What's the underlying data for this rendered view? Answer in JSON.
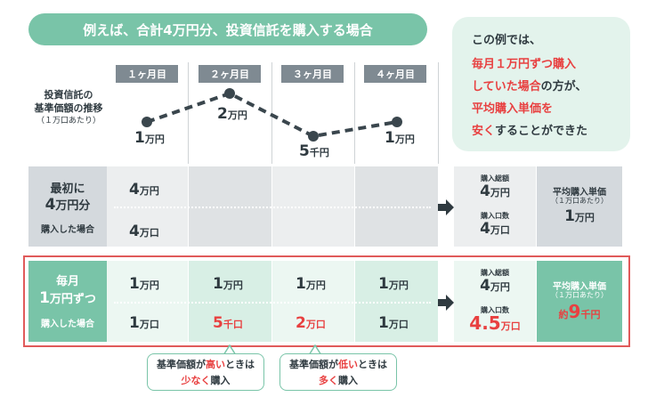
{
  "banner": {
    "title": "例えば、合計4万円分、投資信託を購入する場合"
  },
  "callout": {
    "l1": "この例では、",
    "l2": "毎月１万円ずつ購入",
    "l3a": "していた場合",
    "l3b": "の方が、",
    "l4": "平均購入単価を",
    "l5a": "安く",
    "l5b": "することができた"
  },
  "months": [
    "１ヶ月目",
    "２ヶ月目",
    "３ヶ月目",
    "４ヶ月目"
  ],
  "price_chart": {
    "label_l1": "投資信託の",
    "label_l2": "基準価額の推移",
    "label_l3": "（１万口あたり）",
    "points": [
      {
        "num": "1",
        "unit": "万円",
        "value_yen": 10000
      },
      {
        "num": "2",
        "unit": "万円",
        "value_yen": 20000
      },
      {
        "num": "5",
        "unit": "千円",
        "value_yen": 5000
      },
      {
        "num": "1",
        "unit": "万円",
        "value_yen": 10000
      }
    ]
  },
  "lump": {
    "label_l1": "最初に",
    "label_l2_num": "4",
    "label_l2_unit": "万円分",
    "label_l3": "購入した場合",
    "amount_num": "4",
    "amount_unit": "万円",
    "units_num": "4",
    "units_unit": "万口",
    "total_label": "購入総額",
    "total_num": "4",
    "total_unit": "万円",
    "qty_label": "購入口数",
    "qty_num": "4",
    "qty_unit": "万口",
    "avg_title": "平均購入単価",
    "avg_sub": "（１万口あたり）",
    "avg_num": "1",
    "avg_unit": "万円"
  },
  "monthly": {
    "label_l1": "毎月",
    "label_l2_num": "1",
    "label_l2_unit": "万円ずつ",
    "label_l3": "購入した場合",
    "cells": [
      {
        "amt_num": "1",
        "amt_unit": "万円",
        "qty_num": "1",
        "qty_unit": "万口",
        "red": false
      },
      {
        "amt_num": "1",
        "amt_unit": "万円",
        "qty_num": "5",
        "qty_unit": "千口",
        "red": true
      },
      {
        "amt_num": "1",
        "amt_unit": "万円",
        "qty_num": "2",
        "qty_unit": "万口",
        "red": true
      },
      {
        "amt_num": "1",
        "amt_unit": "万円",
        "qty_num": "1",
        "qty_unit": "万口",
        "red": false
      }
    ],
    "total_label": "購入総額",
    "total_num": "4",
    "total_unit": "万円",
    "qty_label": "購入口数",
    "qty_num": "4.5",
    "qty_unit": "万口",
    "avg_title": "平均購入単価",
    "avg_sub": "（１万口あたり）",
    "avg_pre": "約",
    "avg_num": "9",
    "avg_unit": "千円"
  },
  "bubbles": {
    "b1_l1a": "基準価額が",
    "b1_l1b": "高い",
    "b1_l1c": "ときは",
    "b1_l2a": "少なく",
    "b1_l2b": "購入",
    "b2_l1a": "基準価額が",
    "b2_l1b": "低い",
    "b2_l1c": "ときは",
    "b2_l2a": "多く",
    "b2_l2b": "購入"
  },
  "colors": {
    "accent_green": "#79c4a8",
    "red": "#e84040",
    "gray_row": "#d4d9dd",
    "dark_text": "#2f3a40"
  }
}
